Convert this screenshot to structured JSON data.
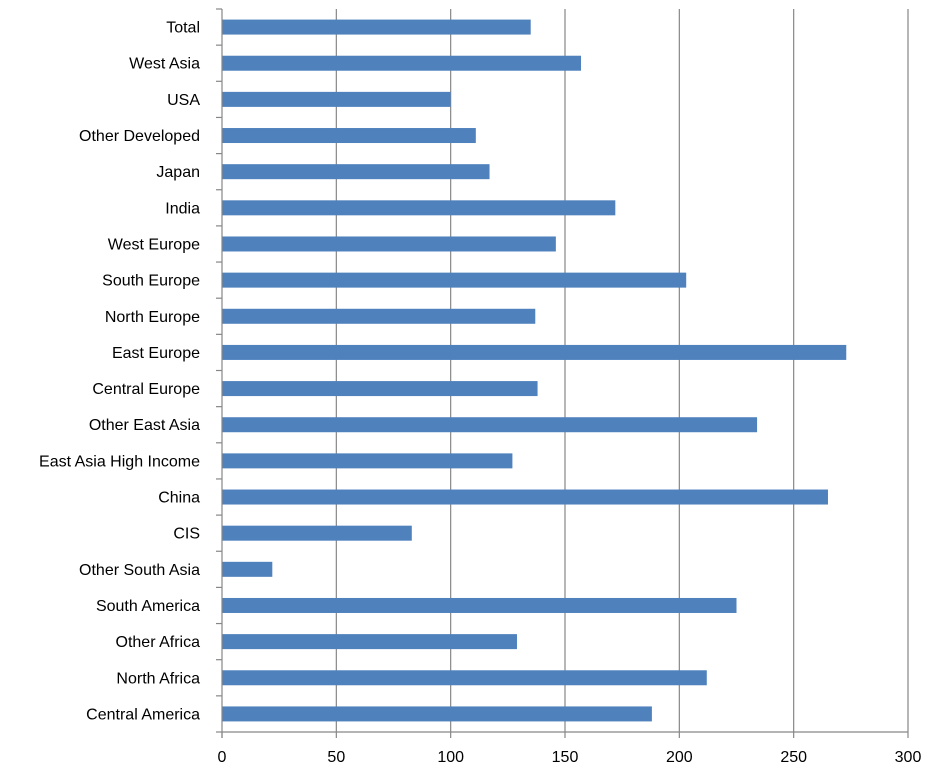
{
  "chart_data": {
    "type": "bar",
    "orientation": "horizontal",
    "title": "",
    "xlabel": "",
    "ylabel": "",
    "categories": [
      "Total",
      "West Asia",
      "USA",
      "Other Developed",
      "Japan",
      "India",
      "West Europe",
      "South Europe",
      "North Europe",
      "East Europe",
      "Central Europe",
      "Other East Asia",
      "East Asia High Income",
      "China",
      "CIS",
      "Other South Asia",
      "South America",
      "Other Africa",
      "North Africa",
      "Central America"
    ],
    "values": [
      135,
      157,
      100,
      111,
      117,
      172,
      146,
      203,
      137,
      273,
      138,
      234,
      127,
      265,
      83,
      22,
      225,
      129,
      212,
      188
    ],
    "xlim": [
      0,
      300
    ],
    "xticks": [
      0,
      50,
      100,
      150,
      200,
      250,
      300
    ],
    "grid": "vertical",
    "legend": "none",
    "bar_color": "#4f81bd"
  }
}
